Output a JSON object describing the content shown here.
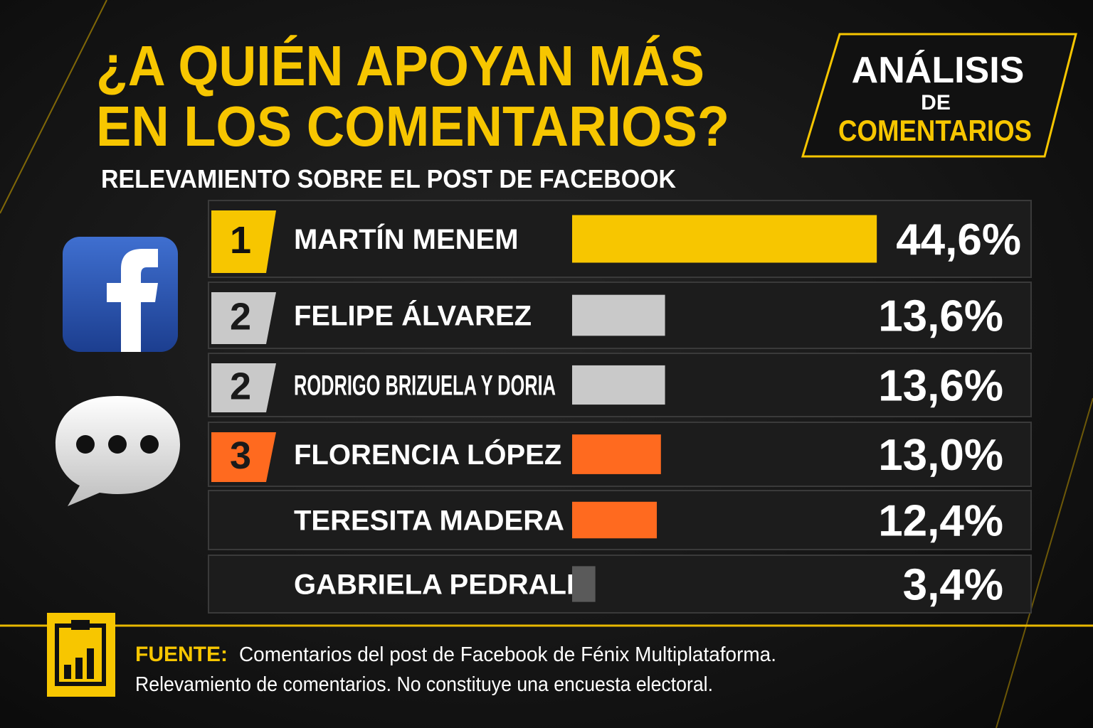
{
  "chart_data": {
    "type": "bar",
    "title_lines": [
      "¿A QUIÉN APOYAN MÁS",
      "EN LOS COMENTARIOS?"
    ],
    "subtitle": "RELEVAMIENTO SOBRE EL POST DE FACEBOOK",
    "badge_lines": [
      "ANÁLISIS",
      "DE",
      "COMENTARIOS"
    ],
    "categories": [
      "MARTÍN MENEM",
      "FELIPE ÁLVAREZ",
      "RODRIGO BRIZUELA Y DORIA",
      "FLORENCIA LÓPEZ",
      "TERESITA MADERA",
      "GABRIELA PEDRALI"
    ],
    "ranks": [
      "1",
      "2",
      "2",
      "3",
      null,
      null
    ],
    "values": [
      44.6,
      13.6,
      13.6,
      13.0,
      12.4,
      3.4
    ],
    "value_labels": [
      "44,6%",
      "13,6%",
      "13,6%",
      "13,0%",
      "12,4%",
      "3,4%"
    ],
    "colors": [
      "#f7c600",
      "#c9c9c9",
      "#c9c9c9",
      "#ff6a1f",
      "#ff6a1f",
      "#5a5a5a"
    ],
    "source_label": "FUENTE:",
    "source_lines": [
      "Comentarios del post de Facebook de Fénix Multiplataforma.",
      "Relevamiento de comentarios. No constituye una encuesta electoral."
    ]
  }
}
